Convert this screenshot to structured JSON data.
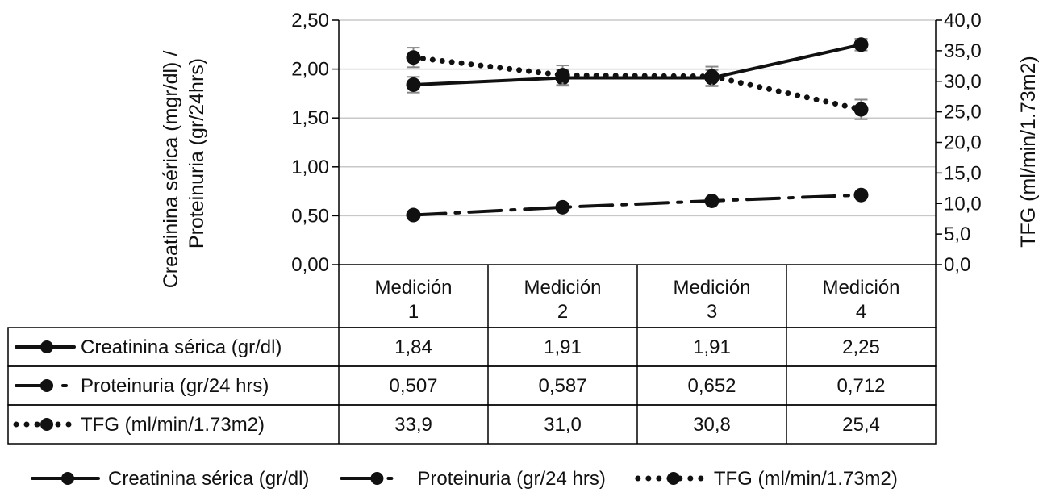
{
  "chart_data": {
    "type": "line",
    "ylabel_left_line1": "Creatinina sérica (mgr/dl) /",
    "ylabel_left_line2": "Proteinuria (gr/24hrs)",
    "ylabel_right": "TFG (ml/min/1.73m2)",
    "ylim_left": [
      0,
      2.5
    ],
    "ylim_right": [
      0,
      40
    ],
    "yticks_left": [
      "0,00",
      "0,50",
      "1,00",
      "1,50",
      "2,00",
      "2,50"
    ],
    "yticks_right": [
      "0,0",
      "5,0",
      "10,0",
      "15,0",
      "20,0",
      "25,0",
      "30,0",
      "35,0",
      "40,0"
    ],
    "grid": true,
    "categories": [
      [
        "Medición",
        "1"
      ],
      [
        "Medición",
        "2"
      ],
      [
        "Medición",
        "3"
      ],
      [
        "Medición",
        "4"
      ]
    ],
    "series": [
      {
        "name": "Creatinina sérica (gr/dl)",
        "axis": "left",
        "style": "solid",
        "values": [
          1.84,
          1.91,
          1.91,
          2.25
        ],
        "value_labels": [
          "1,84",
          "1,91",
          "1,91",
          "2,25"
        ],
        "error": [
          0.08,
          0.08,
          0.08,
          0.06
        ]
      },
      {
        "name": "Proteinuria (gr/24 hrs)",
        "axis": "left",
        "style": "dashdot",
        "values": [
          0.507,
          0.587,
          0.652,
          0.712
        ],
        "value_labels": [
          "0,507",
          "0,587",
          "0,652",
          "0,712"
        ],
        "error": [
          0.0,
          0.0,
          0.0,
          0.0
        ]
      },
      {
        "name": "TFG (ml/min/1.73m2)",
        "axis": "right",
        "style": "dotted",
        "values": [
          33.9,
          31.0,
          30.8,
          25.4
        ],
        "value_labels": [
          "33,9",
          "31,0",
          "30,8",
          "25,4"
        ],
        "error": [
          1.6,
          1.6,
          1.6,
          1.6
        ]
      }
    ],
    "legend_position": "bottom",
    "colors": {
      "line": "#111111",
      "grid": "#c8c8c8",
      "border": "#000000"
    }
  }
}
